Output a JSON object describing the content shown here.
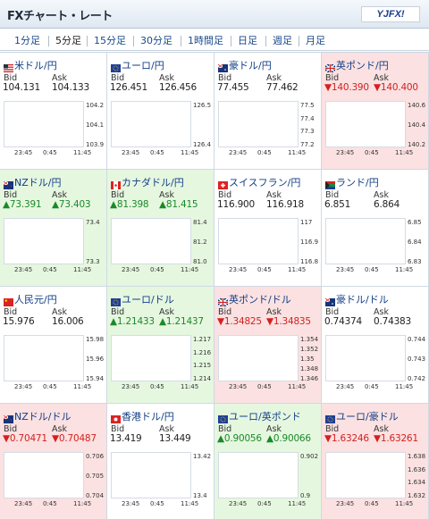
{
  "header": {
    "title": "FXチャート・レート",
    "logo_text": "YJFX!"
  },
  "tabs": [
    "1分足",
    "5分足",
    "15分足",
    "30分足",
    "1時間足",
    "日足",
    "週足",
    "月足"
  ],
  "active_tab": "5分足",
  "labels": {
    "bid": "Bid",
    "ask": "Ask"
  },
  "colors": {
    "up_bg": "#e6f7e0",
    "down_bg": "#fbe1e1",
    "up_text": "#1a8a2a",
    "down_text": "#d42020",
    "candle_up": "#e02020",
    "candle_down": "#1a3fb0",
    "ma_line": "#c020c0"
  },
  "pairs": [
    {
      "name": "米ドル/円",
      "flag": "us-flag-icon",
      "bid": "104.131",
      "ask": "104.133",
      "dir": "none",
      "y_ticks": [
        "104.2",
        "104.1",
        "103.9"
      ],
      "x_ticks": [
        "23:45",
        "0:45",
        "11:45"
      ],
      "chart_data": {
        "type": "candlestick",
        "trend": [
          0.15,
          0.2,
          0.35,
          0.45,
          0.5,
          0.55,
          0.6,
          0.7,
          0.85,
          0.8,
          0.75,
          0.7
        ],
        "ma": [
          0.1,
          0.15,
          0.2,
          0.25,
          0.32,
          0.38,
          0.45,
          0.5,
          0.55,
          0.58,
          0.6,
          0.62
        ]
      }
    },
    {
      "name": "ユーロ/円",
      "flag": "eu-flag-icon",
      "bid": "126.451",
      "ask": "126.456",
      "dir": "none",
      "y_ticks": [
        "126.5",
        "126.4"
      ],
      "x_ticks": [
        "23:45",
        "0:45",
        "11:45"
      ],
      "chart_data": {
        "type": "candlestick",
        "trend": [
          0.2,
          0.35,
          0.5,
          0.55,
          0.85,
          0.65,
          0.5,
          0.6,
          0.7,
          0.55,
          0.45,
          0.4
        ],
        "ma": [
          0.3,
          0.35,
          0.4,
          0.48,
          0.55,
          0.6,
          0.62,
          0.63,
          0.62,
          0.58,
          0.55,
          0.5
        ]
      }
    },
    {
      "name": "豪ドル/円",
      "flag": "au-flag-icon",
      "bid": "77.455",
      "ask": "77.462",
      "dir": "none",
      "y_ticks": [
        "77.5",
        "77.4",
        "77.3",
        "77.2"
      ],
      "x_ticks": [
        "23:45",
        "0:45",
        "11:45"
      ],
      "chart_data": {
        "type": "candlestick",
        "trend": [
          0.2,
          0.3,
          0.35,
          0.45,
          0.5,
          0.55,
          0.6,
          0.7,
          0.75,
          0.8,
          0.85,
          0.88
        ],
        "ma": [
          0.15,
          0.2,
          0.28,
          0.35,
          0.42,
          0.48,
          0.55,
          0.6,
          0.66,
          0.7,
          0.75,
          0.78
        ]
      }
    },
    {
      "name": "英ポンド/円",
      "flag": "gb-flag-icon",
      "bid": "▼140.390",
      "ask": "▼140.400",
      "dir": "down",
      "y_ticks": [
        "140.6",
        "140.4",
        "140.2"
      ],
      "x_ticks": [
        "23:45",
        "0:45",
        "11:45"
      ],
      "chart_data": {
        "type": "candlestick",
        "trend": [
          0.7,
          0.8,
          0.75,
          0.85,
          0.7,
          0.6,
          0.45,
          0.5,
          0.55,
          0.45,
          0.5,
          0.45
        ],
        "ma": [
          0.55,
          0.6,
          0.65,
          0.7,
          0.72,
          0.7,
          0.68,
          0.65,
          0.62,
          0.6,
          0.58,
          0.56
        ]
      }
    },
    {
      "name": "NZドル/円",
      "flag": "nz-flag-icon",
      "bid": "▲73.391",
      "ask": "▲73.403",
      "dir": "up",
      "y_ticks": [
        "73.4",
        "73.3"
      ],
      "x_ticks": [
        "23:45",
        "0:45",
        "11:45"
      ],
      "chart_data": {
        "type": "candlestick",
        "trend": [
          0.2,
          0.3,
          0.4,
          0.45,
          0.55,
          0.6,
          0.5,
          0.65,
          0.75,
          0.7,
          0.72,
          0.68
        ],
        "ma": [
          0.2,
          0.25,
          0.3,
          0.38,
          0.45,
          0.5,
          0.53,
          0.56,
          0.6,
          0.63,
          0.65,
          0.66
        ]
      }
    },
    {
      "name": "カナダドル/円",
      "flag": "ca-flag-icon",
      "bid": "▲81.398",
      "ask": "▲81.415",
      "dir": "up",
      "y_ticks": [
        "81.4",
        "81.2",
        "81.0"
      ],
      "x_ticks": [
        "23:45",
        "0:45",
        "11:45"
      ],
      "chart_data": {
        "type": "candlestick",
        "trend": [
          0.15,
          0.25,
          0.35,
          0.45,
          0.5,
          0.55,
          0.62,
          0.68,
          0.72,
          0.78,
          0.82,
          0.85
        ],
        "ma": [
          0.1,
          0.15,
          0.2,
          0.28,
          0.35,
          0.42,
          0.5,
          0.55,
          0.6,
          0.65,
          0.7,
          0.74
        ]
      }
    },
    {
      "name": "スイスフラン/円",
      "flag": "ch-flag-icon",
      "bid": "116.900",
      "ask": "116.918",
      "dir": "none",
      "y_ticks": [
        "117",
        "116.9",
        "116.8"
      ],
      "x_ticks": [
        "23:45",
        "0:45",
        "11:45"
      ],
      "chart_data": {
        "type": "candlestick",
        "trend": [
          0.3,
          0.45,
          0.55,
          0.7,
          0.6,
          0.5,
          0.55,
          0.6,
          0.7,
          0.55,
          0.5,
          0.45
        ],
        "ma": [
          0.4,
          0.42,
          0.45,
          0.5,
          0.55,
          0.56,
          0.55,
          0.56,
          0.57,
          0.56,
          0.54,
          0.52
        ]
      }
    },
    {
      "name": "ランド/円",
      "flag": "za-flag-icon",
      "bid": "6.851",
      "ask": "6.864",
      "dir": "none",
      "y_ticks": [
        "6.85",
        "6.84",
        "6.83"
      ],
      "x_ticks": [
        "23:45",
        "0:45",
        "11:45"
      ],
      "chart_data": {
        "type": "candlestick",
        "trend": [
          0.3,
          0.45,
          0.35,
          0.5,
          0.7,
          0.55,
          0.5,
          0.6,
          0.65,
          0.55,
          0.75,
          0.7
        ],
        "ma": [
          0.45,
          0.46,
          0.47,
          0.5,
          0.52,
          0.53,
          0.53,
          0.54,
          0.55,
          0.56,
          0.58,
          0.6
        ]
      }
    },
    {
      "name": "人民元/円",
      "flag": "cn-flag-icon",
      "bid": "15.976",
      "ask": "16.006",
      "dir": "none",
      "y_ticks": [
        "15.98",
        "15.96",
        "15.94"
      ],
      "x_ticks": [
        "23:45",
        "0:45",
        "11:45"
      ],
      "chart_data": {
        "type": "candlestick",
        "trend": [
          0.15,
          0.25,
          0.3,
          0.4,
          0.45,
          0.5,
          0.55,
          0.62,
          0.7,
          0.78,
          0.82,
          0.85
        ],
        "ma": [
          0.1,
          0.15,
          0.2,
          0.26,
          0.32,
          0.38,
          0.45,
          0.5,
          0.56,
          0.62,
          0.68,
          0.72
        ]
      }
    },
    {
      "name": "ユーロ/ドル",
      "flag": "eu-flag-icon",
      "bid": "▲1.21433",
      "ask": "▲1.21437",
      "dir": "up",
      "y_ticks": [
        "1.217",
        "1.216",
        "1.215",
        "1.214"
      ],
      "x_ticks": [
        "23:45",
        "0:45",
        "11:45"
      ],
      "chart_data": {
        "type": "candlestick",
        "trend": [
          0.7,
          0.8,
          0.75,
          0.6,
          0.55,
          0.45,
          0.35,
          0.3,
          0.25,
          0.2,
          0.22,
          0.25
        ],
        "ma": [
          0.7,
          0.72,
          0.7,
          0.66,
          0.62,
          0.58,
          0.52,
          0.46,
          0.4,
          0.35,
          0.32,
          0.3
        ]
      }
    },
    {
      "name": "英ポンド/ドル",
      "flag": "gb-flag-icon",
      "bid": "▼1.34825",
      "ask": "▼1.34835",
      "dir": "down",
      "y_ticks": [
        "1.354",
        "1.352",
        "1.35",
        "1.348",
        "1.346"
      ],
      "x_ticks": [
        "23:45",
        "0:45",
        "11:45"
      ],
      "chart_data": {
        "type": "candlestick",
        "trend": [
          0.7,
          0.6,
          0.5,
          0.4,
          0.35,
          0.3,
          0.25,
          0.2,
          0.18,
          0.15,
          0.2,
          0.18
        ],
        "ma": [
          0.65,
          0.62,
          0.58,
          0.52,
          0.46,
          0.42,
          0.38,
          0.34,
          0.3,
          0.26,
          0.24,
          0.22
        ]
      }
    },
    {
      "name": "豪ドル/ドル",
      "flag": "au-flag-icon",
      "bid": "0.74374",
      "ask": "0.74383",
      "dir": "none",
      "y_ticks": [
        "0.744",
        "0.743",
        "0.742"
      ],
      "x_ticks": [
        "23:45",
        "0:45",
        "11:45"
      ],
      "chart_data": {
        "type": "candlestick",
        "trend": [
          0.8,
          0.6,
          0.5,
          0.45,
          0.3,
          0.4,
          0.35,
          0.5,
          0.6,
          0.7,
          0.8,
          0.85
        ],
        "ma": [
          0.65,
          0.6,
          0.55,
          0.5,
          0.45,
          0.42,
          0.42,
          0.45,
          0.5,
          0.56,
          0.62,
          0.68
        ]
      }
    },
    {
      "name": "NZドル/ドル",
      "flag": "nz-flag-icon",
      "bid": "▼0.70471",
      "ask": "▼0.70487",
      "dir": "down",
      "y_ticks": [
        "0.706",
        "0.705",
        "0.704"
      ],
      "x_ticks": [
        "23:45",
        "0:45",
        "11:45"
      ],
      "chart_data": {
        "type": "candlestick",
        "trend": [
          0.6,
          0.7,
          0.55,
          0.45,
          0.5,
          0.4,
          0.3,
          0.35,
          0.25,
          0.2,
          0.25,
          0.22
        ],
        "ma": [
          0.55,
          0.56,
          0.55,
          0.52,
          0.5,
          0.46,
          0.42,
          0.4,
          0.36,
          0.32,
          0.3,
          0.28
        ]
      }
    },
    {
      "name": "香港ドル/円",
      "flag": "hk-flag-icon",
      "bid": "13.419",
      "ask": "13.449",
      "dir": "none",
      "y_ticks": [
        "13.42",
        "13.4"
      ],
      "x_ticks": [
        "23:45",
        "0:45",
        "11:45"
      ],
      "chart_data": {
        "type": "candlestick",
        "trend": [
          0.15,
          0.25,
          0.35,
          0.45,
          0.55,
          0.6,
          0.65,
          0.75,
          0.85,
          0.8,
          0.72,
          0.7
        ],
        "ma": [
          0.1,
          0.15,
          0.2,
          0.28,
          0.35,
          0.42,
          0.5,
          0.56,
          0.62,
          0.66,
          0.68,
          0.7
        ]
      }
    },
    {
      "name": "ユーロ/英ポンド",
      "flag": "eu-flag-icon",
      "bid": "▲0.90056",
      "ask": "▲0.90066",
      "dir": "up",
      "y_ticks": [
        "0.902",
        "0.9"
      ],
      "x_ticks": [
        "23:45",
        "0:45",
        "11:45"
      ],
      "chart_data": {
        "type": "candlestick",
        "trend": [
          0.3,
          0.25,
          0.2,
          0.3,
          0.4,
          0.45,
          0.5,
          0.55,
          0.6,
          0.55,
          0.5,
          0.48
        ],
        "ma": [
          0.6,
          0.55,
          0.5,
          0.45,
          0.4,
          0.38,
          0.38,
          0.4,
          0.42,
          0.44,
          0.45,
          0.46
        ]
      }
    },
    {
      "name": "ユーロ/豪ドル",
      "flag": "eu-flag-icon",
      "bid": "▼1.63246",
      "ask": "▼1.63261",
      "dir": "down",
      "y_ticks": [
        "1.638",
        "1.636",
        "1.634",
        "1.632"
      ],
      "x_ticks": [
        "23:45",
        "0:45",
        "11:45"
      ],
      "chart_data": {
        "type": "candlestick",
        "trend": [
          0.8,
          0.7,
          0.6,
          0.55,
          0.5,
          0.45,
          0.35,
          0.3,
          0.25,
          0.2,
          0.15,
          0.12
        ],
        "ma": [
          0.78,
          0.75,
          0.7,
          0.65,
          0.6,
          0.55,
          0.5,
          0.45,
          0.4,
          0.35,
          0.3,
          0.26
        ]
      }
    }
  ]
}
